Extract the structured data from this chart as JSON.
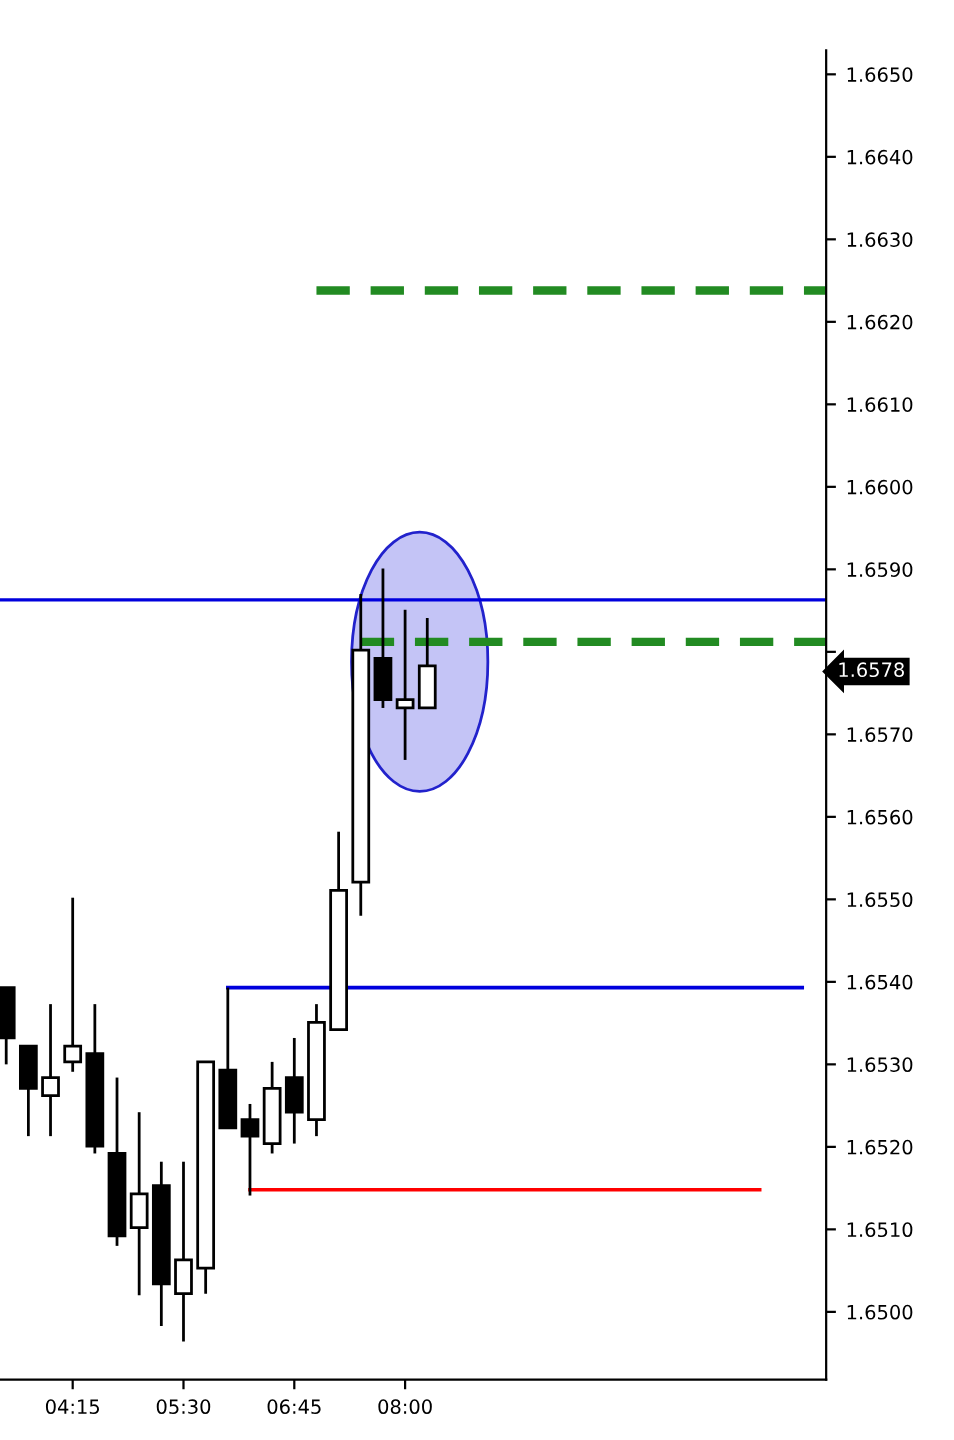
{
  "chart_data": {
    "type": "candlestick",
    "x": [
      3.5,
      3.75,
      4.0,
      4.25,
      4.5,
      4.75,
      5.0,
      5.25,
      5.5,
      5.75,
      6.0,
      6.25,
      6.5,
      6.75,
      7.0,
      7.25,
      7.5,
      7.75,
      8.0,
      8.25
    ],
    "ohlc": [
      [
        1.65393,
        1.65393,
        1.653,
        1.65332
      ],
      [
        1.65322,
        1.65322,
        1.65213,
        1.65271
      ],
      [
        1.65262,
        1.65373,
        1.65213,
        1.65284
      ],
      [
        1.65303,
        1.65502,
        1.65291,
        1.65322
      ],
      [
        1.65313,
        1.65373,
        1.65192,
        1.65201
      ],
      [
        1.65192,
        1.65284,
        1.6508,
        1.65092
      ],
      [
        1.65102,
        1.65242,
        1.6502,
        1.65143
      ],
      [
        1.65153,
        1.65182,
        1.64983,
        1.65034
      ],
      [
        1.65022,
        1.65182,
        1.64964,
        1.65063
      ],
      [
        1.65053,
        1.65303,
        1.65022,
        1.65303
      ],
      [
        1.65293,
        1.65393,
        1.65223,
        1.65223
      ],
      [
        1.65233,
        1.65252,
        1.65141,
        1.65213
      ],
      [
        1.65204,
        1.65303,
        1.65192,
        1.65271
      ],
      [
        1.65284,
        1.65332,
        1.65204,
        1.65242
      ],
      [
        1.65233,
        1.65373,
        1.65213,
        1.65351
      ],
      [
        1.65342,
        1.65582,
        1.65342,
        1.65511
      ],
      [
        1.65521,
        1.6587,
        1.6548,
        1.65802
      ],
      [
        1.65792,
        1.65901,
        1.65732,
        1.65742
      ],
      [
        1.65732,
        1.65851,
        1.65669,
        1.65742
      ],
      [
        1.65732,
        1.65841,
        1.65732,
        1.65783
      ]
    ],
    "series": [
      {
        "type": "line",
        "color": "#0000dd",
        "line_style": "solid",
        "x": [
          6.0,
          12.48
        ],
        "values": [
          1.65393,
          1.65393
        ]
      },
      {
        "type": "line",
        "color": "#ff0000",
        "line_style": "solid",
        "x": [
          6.25,
          12.0
        ],
        "values": [
          1.65148,
          1.65148
        ]
      },
      {
        "type": "line",
        "color": "#228b22",
        "line_style": "dashed",
        "x": [
          7.0,
          12.75
        ],
        "values": [
          1.66238,
          1.66238
        ]
      },
      {
        "type": "line",
        "color": "#228b22",
        "line_style": "dashed",
        "x": [
          7.5,
          12.75
        ],
        "values": [
          1.65812,
          1.65812
        ]
      }
    ],
    "ref_lines": [
      {
        "axis": "y",
        "value": 1.65863,
        "color": "#0000dd"
      }
    ],
    "annotations": [
      "1.6578"
    ],
    "xlim": [
      3.43,
      12.75
    ],
    "ylim": [
      1.64918,
      1.66529
    ],
    "xticks": [
      {
        "value": 4.25,
        "label": "04:15"
      },
      {
        "value": 5.5,
        "label": "05:30"
      },
      {
        "value": 6.75,
        "label": "06:45"
      },
      {
        "value": 8.0,
        "label": "08:00"
      }
    ],
    "yticks": [
      {
        "value": 1.665,
        "label": "1.6650"
      },
      {
        "value": 1.664,
        "label": "1.6640"
      },
      {
        "value": 1.663,
        "label": "1.6630"
      },
      {
        "value": 1.662,
        "label": "1.6620"
      },
      {
        "value": 1.661,
        "label": "1.6610"
      },
      {
        "value": 1.66,
        "label": "1.6600"
      },
      {
        "value": 1.659,
        "label": "1.6590"
      },
      {
        "value": 1.658,
        "label": null
      },
      {
        "value": 1.657,
        "label": "1.6570"
      },
      {
        "value": 1.656,
        "label": "1.6560"
      },
      {
        "value": 1.655,
        "label": "1.6550"
      },
      {
        "value": 1.654,
        "label": "1.6540"
      },
      {
        "value": 1.653,
        "label": "1.6530"
      },
      {
        "value": 1.652,
        "label": "1.6520"
      },
      {
        "value": 1.651,
        "label": "1.6510"
      },
      {
        "value": 1.65,
        "label": "1.6500"
      }
    ],
    "grid": false
  }
}
